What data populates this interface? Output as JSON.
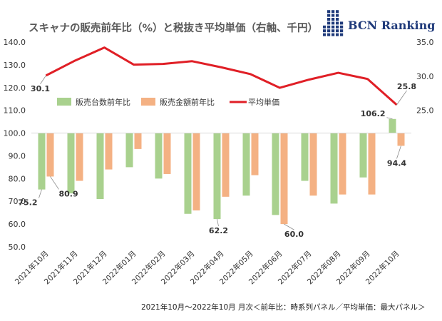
{
  "header": {
    "title": "スキャナの販売前年比（%）と税抜き平均単価（右軸、千円）",
    "logo_text": "BCN Ranking"
  },
  "footnote": "2021年10月～2022年10月 月次＜前年比：時系列パネル／平均単価：最大パネル＞",
  "colors": {
    "units": "#a9d18e",
    "amount": "#f4b183",
    "price": "#e01f26",
    "logo": "#1f3a7a"
  },
  "chart_data": {
    "type": "bar",
    "categories": [
      "2021年10月",
      "2021年11月",
      "2021年12月",
      "2022年01月",
      "2022年02月",
      "2022年03月",
      "2022年04月",
      "2022年05月",
      "2022年06月",
      "2022年07月",
      "2022年08月",
      "2022年09月",
      "2022年10月"
    ],
    "series": [
      {
        "name": "販売台数前年比",
        "type": "bar",
        "axis": "left",
        "color": "#a9d18e",
        "values": [
          75.2,
          73.5,
          71.0,
          85.0,
          80.0,
          64.5,
          62.2,
          72.5,
          64.0,
          79.0,
          69.0,
          80.5,
          106.2
        ]
      },
      {
        "name": "販売金額前年比",
        "type": "bar",
        "axis": "left",
        "color": "#f4b183",
        "values": [
          80.9,
          79.0,
          84.0,
          93.0,
          82.0,
          66.0,
          72.0,
          81.5,
          60.0,
          72.5,
          73.0,
          73.0,
          94.4
        ]
      },
      {
        "name": "平均単価",
        "type": "line",
        "axis": "right",
        "color": "#e01f26",
        "values": [
          30.1,
          32.3,
          34.2,
          31.7,
          31.8,
          32.2,
          31.3,
          30.3,
          28.3,
          29.5,
          30.5,
          29.6,
          25.8
        ]
      }
    ],
    "data_labels": [
      {
        "series": 0,
        "index": 0,
        "text": "75.2"
      },
      {
        "series": 1,
        "index": 0,
        "text": "80.9"
      },
      {
        "series": 0,
        "index": 6,
        "text": "62.2"
      },
      {
        "series": 1,
        "index": 8,
        "text": "60.0"
      },
      {
        "series": 0,
        "index": 12,
        "text": "106.2"
      },
      {
        "series": 1,
        "index": 12,
        "text": "94.4"
      },
      {
        "series": 2,
        "index": 0,
        "text": "30.1"
      },
      {
        "series": 2,
        "index": 12,
        "text": "25.8"
      }
    ],
    "y_left": {
      "min": 50,
      "max": 140,
      "step": 10,
      "ticks": [
        "50.0",
        "60.0",
        "70.0",
        "80.0",
        "90.0",
        "100.0",
        "110.0",
        "120.0",
        "130.0",
        "140.0"
      ]
    },
    "y_right": {
      "min": 5,
      "max": 35,
      "step": 5,
      "visible_ticks": [
        "25.0",
        "30.0",
        "35.0"
      ]
    },
    "bar_baseline": 100,
    "legend_position": "top-left inside plot",
    "grid": false
  }
}
